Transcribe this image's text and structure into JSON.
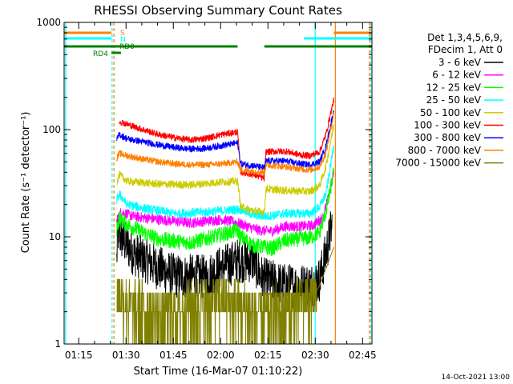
{
  "chart_data": {
    "type": "line",
    "title": "RHESSI Observing Summary Count Rates",
    "xlabel": "Start Time (16-Mar-07 01:10:22)",
    "ylabel": "Count Rate (s⁻¹ detector⁻¹)",
    "yscale": "log",
    "ylim": [
      1,
      1000
    ],
    "xlim_minutes": [
      0,
      97.6
    ],
    "x_ticks": [
      {
        "label": "01:15",
        "value": 4.63
      },
      {
        "label": "01:30",
        "value": 19.63
      },
      {
        "label": "01:45",
        "value": 34.63
      },
      {
        "label": "02:00",
        "value": 49.63
      },
      {
        "label": "02:15",
        "value": 64.63
      },
      {
        "label": "02:30",
        "value": 79.63
      },
      {
        "label": "02:45",
        "value": 94.63
      }
    ],
    "y_ticks": [
      {
        "label": "1",
        "value": 1
      },
      {
        "label": "10",
        "value": 10
      },
      {
        "label": "100",
        "value": 100
      },
      {
        "label": "1000",
        "value": 1000
      }
    ],
    "legend": {
      "position": "right",
      "header": [
        "Det 1,3,4,5,6,9,",
        "FDecim 1, Att 0"
      ],
      "entries": [
        {
          "label": "3 - 6 keV",
          "color": "#000000"
        },
        {
          "label": "6 - 12 keV",
          "color": "#ff00ff"
        },
        {
          "label": "12 - 25 keV",
          "color": "#00ff00"
        },
        {
          "label": "25 - 50 keV",
          "color": "#00ffff"
        },
        {
          "label": "50 - 100 keV",
          "color": "#cccc00"
        },
        {
          "label": "100 - 300 keV",
          "color": "#ff0000"
        },
        {
          "label": "300 - 800 keV",
          "color": "#0000ff"
        },
        {
          "label": "800 - 7000 keV",
          "color": "#ff8000"
        },
        {
          "label": "7000 - 15000 keV",
          "color": "#808000"
        }
      ]
    },
    "flags": [
      {
        "label": "S",
        "color": "#ff8000",
        "segments": [
          [
            0,
            15
          ],
          [
            85.5,
            97.6
          ]
        ]
      },
      {
        "label": "N",
        "color": "#00ffff",
        "segments": [
          [
            0,
            15
          ],
          [
            76,
            97.6
          ]
        ]
      },
      {
        "label": "RD0",
        "color": "#008000",
        "segments": [
          [
            0,
            55
          ],
          [
            63.5,
            97.6
          ]
        ]
      },
      {
        "label": "RD4",
        "color": "#008000",
        "segments": [
          [
            15,
            18
          ]
        ]
      }
    ],
    "vertical_markers": [
      {
        "x": 0.5,
        "color": "#00ffff",
        "style": "solid"
      },
      {
        "x": 15.2,
        "color": "#00ffff",
        "style": "dashed"
      },
      {
        "x": 15.8,
        "color": "#ff8000",
        "style": "dashed"
      },
      {
        "x": 79.6,
        "color": "#00ffff",
        "style": "solid"
      },
      {
        "x": 86.0,
        "color": "#ff8000",
        "style": "solid"
      },
      {
        "x": 96.8,
        "color": "#ff8000",
        "style": "dashed"
      },
      {
        "x": 97.2,
        "color": "#00ffff",
        "style": "dashed"
      }
    ],
    "series": [
      {
        "name": "3 - 6 keV",
        "color": "#000000",
        "noise": 0.35,
        "points": [
          [
            16.7,
            6
          ],
          [
            17,
            11
          ],
          [
            19,
            9
          ],
          [
            22,
            7
          ],
          [
            28,
            5.5
          ],
          [
            35,
            4.3
          ],
          [
            45,
            4.2
          ],
          [
            50,
            5.2
          ],
          [
            55,
            6
          ],
          [
            60,
            6
          ],
          [
            63,
            4
          ],
          [
            70,
            3.5
          ],
          [
            78,
            3.5
          ],
          [
            81,
            4
          ],
          [
            83,
            7
          ],
          [
            85,
            13
          ]
        ]
      },
      {
        "name": "6 - 12 keV",
        "color": "#ff00ff",
        "noise": 0.08,
        "points": [
          [
            16.7,
            14
          ],
          [
            18,
            17
          ],
          [
            22,
            15.5
          ],
          [
            30,
            14.5
          ],
          [
            40,
            13.5
          ],
          [
            50,
            14.5
          ],
          [
            55,
            13.5
          ],
          [
            58,
            12.5
          ],
          [
            62,
            11.5
          ],
          [
            66,
            11.3
          ],
          [
            70,
            12.5
          ],
          [
            75,
            12.5
          ],
          [
            79,
            12.8
          ],
          [
            82,
            15
          ],
          [
            84,
            24
          ],
          [
            85.5,
            40
          ]
        ]
      },
      {
        "name": "12 - 25 keV",
        "color": "#00ff00",
        "noise": 0.12,
        "points": [
          [
            16.7,
            12
          ],
          [
            17.5,
            15
          ],
          [
            20,
            13
          ],
          [
            25,
            11
          ],
          [
            30,
            9.5
          ],
          [
            40,
            8.8
          ],
          [
            50,
            10.5
          ],
          [
            55,
            11.5
          ],
          [
            56,
            10
          ],
          [
            60,
            8.3
          ],
          [
            66,
            7.8
          ],
          [
            70,
            9.2
          ],
          [
            78,
            9.8
          ],
          [
            81,
            11
          ],
          [
            83,
            17
          ],
          [
            85.5,
            40
          ]
        ]
      },
      {
        "name": "25 - 50 keV",
        "color": "#00ffff",
        "noise": 0.07,
        "points": [
          [
            16.7,
            22
          ],
          [
            17.5,
            25
          ],
          [
            20,
            20
          ],
          [
            25,
            18.5
          ],
          [
            35,
            16.5
          ],
          [
            45,
            17
          ],
          [
            55,
            18
          ],
          [
            56,
            18
          ],
          [
            60,
            16
          ],
          [
            64,
            15.5
          ],
          [
            70,
            16.5
          ],
          [
            78,
            16.5
          ],
          [
            81,
            19
          ],
          [
            83,
            25
          ],
          [
            85.5,
            70
          ]
        ]
      },
      {
        "name": "50 - 100 keV",
        "color": "#cccc00",
        "noise": 0.06,
        "points": [
          [
            16.7,
            32
          ],
          [
            17.5,
            38
          ],
          [
            20,
            33
          ],
          [
            30,
            31
          ],
          [
            40,
            30.5
          ],
          [
            50,
            32.5
          ],
          [
            55,
            33
          ],
          [
            56,
            19
          ],
          [
            60,
            17.5
          ],
          [
            63.5,
            17
          ],
          [
            64,
            28
          ],
          [
            70,
            27
          ],
          [
            78,
            26.5
          ],
          [
            81,
            30
          ],
          [
            83,
            45
          ],
          [
            85.5,
            110
          ]
        ]
      },
      {
        "name": "100 - 300 keV",
        "color": "#ff0000",
        "noise": 0.05,
        "points": [
          [
            17.5,
            120
          ],
          [
            20,
            112
          ],
          [
            25,
            100
          ],
          [
            30,
            90
          ],
          [
            35,
            84
          ],
          [
            40,
            80
          ],
          [
            45,
            83
          ],
          [
            50,
            90
          ],
          [
            55,
            95
          ],
          [
            56,
            40
          ],
          [
            60,
            38
          ],
          [
            63.5,
            35
          ],
          [
            64,
            62
          ],
          [
            70,
            63
          ],
          [
            75,
            58
          ],
          [
            78,
            57
          ],
          [
            81,
            62
          ],
          [
            83,
            90
          ],
          [
            85.5,
            190
          ]
        ]
      },
      {
        "name": "300 - 800 keV",
        "color": "#0000ff",
        "noise": 0.05,
        "points": [
          [
            16.7,
            80
          ],
          [
            17.5,
            90
          ],
          [
            20,
            82
          ],
          [
            25,
            77
          ],
          [
            30,
            72
          ],
          [
            35,
            68
          ],
          [
            40,
            66
          ],
          [
            45,
            67
          ],
          [
            50,
            71
          ],
          [
            55,
            75
          ],
          [
            56,
            48
          ],
          [
            60,
            46
          ],
          [
            63.5,
            44
          ],
          [
            64,
            51
          ],
          [
            70,
            51
          ],
          [
            75,
            48
          ],
          [
            78,
            47
          ],
          [
            81,
            50
          ],
          [
            83,
            70
          ],
          [
            85.5,
            150
          ]
        ]
      },
      {
        "name": "800 - 7000 keV",
        "color": "#ff8000",
        "noise": 0.05,
        "points": [
          [
            16.7,
            54
          ],
          [
            17.5,
            60
          ],
          [
            20,
            57
          ],
          [
            25,
            53
          ],
          [
            30,
            50
          ],
          [
            35,
            48
          ],
          [
            40,
            47
          ],
          [
            45,
            47
          ],
          [
            50,
            48
          ],
          [
            55,
            50
          ],
          [
            56,
            42
          ],
          [
            60,
            41
          ],
          [
            63.5,
            40
          ],
          [
            64,
            47
          ],
          [
            70,
            45
          ],
          [
            75,
            43
          ],
          [
            78,
            42
          ],
          [
            81,
            45
          ],
          [
            83,
            60
          ],
          [
            85.5,
            140
          ]
        ]
      },
      {
        "name": "7000 - 15000 keV",
        "color": "#808000",
        "noise": 0,
        "points": [
          [
            16.7,
            3
          ],
          [
            20,
            2.4
          ],
          [
            30,
            1.9
          ],
          [
            40,
            2.2
          ],
          [
            50,
            2.6
          ],
          [
            55,
            2.5
          ],
          [
            60,
            1.9
          ],
          [
            70,
            2.1
          ],
          [
            79,
            2.8
          ],
          [
            81,
            3.5
          ],
          [
            83,
            5
          ],
          [
            85.5,
            8
          ]
        ]
      }
    ],
    "footer": "14-Oct-2021 13:00"
  }
}
